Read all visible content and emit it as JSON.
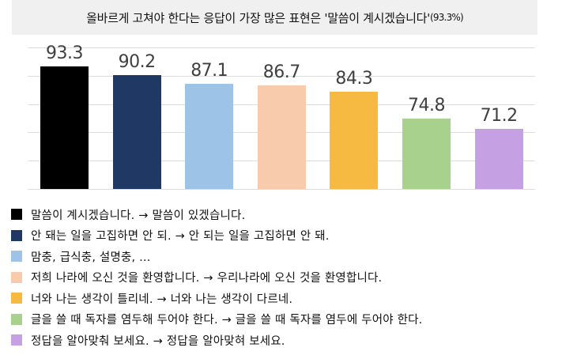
{
  "title": {
    "main": "올바르게 고쳐야 한다는 응답이 가장 많은 표현은 '말씀이 계시겠습니다'",
    "suffix": "(93.3%)"
  },
  "chart_data": {
    "type": "bar",
    "title": "올바르게 고쳐야 한다는 응답이 가장 많은 표현은 '말씀이 계시겠습니다'(93.3%)",
    "xlabel": "",
    "ylabel": "",
    "ylim": [
      50,
      100
    ],
    "grid": true,
    "legend_position": "bottom",
    "categories": [
      "말씀이 계시겠습니다. → 말씀이 있겠습니다.",
      "안 돼는 일을 고집하면 안 되. → 안 되는 일을 고집하면 안 돼.",
      "맘충, 급식충, 설명충, ...",
      "저희 나라에 오신 것을 환영합니다. → 우리나라에 오신 것을 환영합니다.",
      "너와 나는 생각이 틀리네. → 너와 나는 생각이 다르네.",
      "글을 쓸 때 독자를 염두해 두어야 한다. → 글을 쓸 때 독자를 염두에 두어야 한다.",
      "정답을 알아맞춰 보세요. → 정답을 알아맞혀 보세요."
    ],
    "values": [
      93.3,
      90.2,
      87.1,
      86.7,
      84.3,
      74.8,
      71.2
    ],
    "value_labels": [
      "93.3",
      "90.2",
      "87.1",
      "86.7",
      "84.3",
      "74.8",
      "71.2"
    ],
    "colors": [
      "#000000",
      "#203864",
      "#9dc3e6",
      "#f8cbad",
      "#f6b942",
      "#a9d18e",
      "#c5a0e2"
    ]
  }
}
